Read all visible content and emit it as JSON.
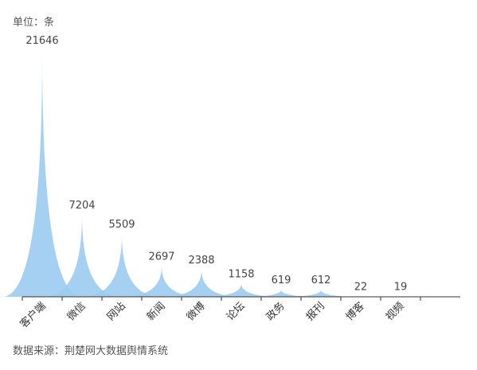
{
  "header": {
    "unit_label": "单位：条"
  },
  "footer": {
    "source_label": "数据来源：荆楚网大数据舆情系统"
  },
  "chart_data": {
    "type": "area",
    "subtype": "pictorial-spike",
    "categories": [
      "客户端",
      "微信",
      "网站",
      "新闻",
      "微博",
      "论坛",
      "政务",
      "报刊",
      "博客",
      "视频"
    ],
    "values": [
      21646,
      7204,
      5509,
      2697,
      2388,
      1158,
      619,
      612,
      22,
      19
    ],
    "title": "",
    "xlabel": "",
    "ylabel": "单位：条",
    "ylim": [
      0,
      21646
    ],
    "grid": false,
    "legend": "none",
    "colors": {
      "fill": "#9ccbf1",
      "axis": "#333333"
    }
  }
}
